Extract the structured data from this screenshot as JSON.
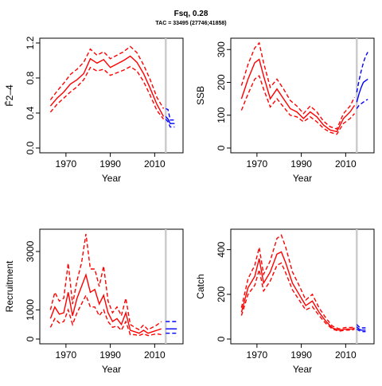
{
  "title": "Fsq, 0.28",
  "subtitle": "TAC = 33495 (27746;41858)",
  "colors": {
    "history": "#ff0000",
    "projection": "#0000ff",
    "marker": "#cccccc"
  },
  "chart_data": [
    {
      "id": "f",
      "type": "line",
      "ylabel": "F̄2–4",
      "xlabel": "Year",
      "xlim": [
        1960,
        2021
      ],
      "ylim": [
        0,
        1.2
      ],
      "xticks": [
        1970,
        1990,
        2010
      ],
      "yticks": [
        0.0,
        0.4,
        0.8,
        1.2
      ],
      "ytick_labels": [
        "0.0",
        "0.4",
        "0.8",
        "1.2"
      ],
      "marker_year": 2015,
      "history": {
        "x": [
          1963,
          1966,
          1969,
          1972,
          1975,
          1978,
          1981,
          1984,
          1987,
          1990,
          1993,
          1996,
          1999,
          2002,
          2005,
          2008,
          2011,
          2014
        ],
        "median": [
          0.48,
          0.57,
          0.64,
          0.73,
          0.78,
          0.85,
          1.02,
          0.97,
          1.01,
          0.92,
          0.96,
          1.0,
          1.05,
          0.98,
          0.85,
          0.68,
          0.5,
          0.36
        ],
        "lower": [
          0.41,
          0.5,
          0.57,
          0.64,
          0.7,
          0.78,
          0.92,
          0.88,
          0.9,
          0.83,
          0.86,
          0.89,
          0.93,
          0.88,
          0.76,
          0.6,
          0.43,
          0.33
        ],
        "upper": [
          0.55,
          0.65,
          0.74,
          0.84,
          0.9,
          0.98,
          1.13,
          1.06,
          1.1,
          1.02,
          1.06,
          1.1,
          1.16,
          1.09,
          0.95,
          0.78,
          0.58,
          0.45
        ]
      },
      "projection": {
        "x": [
          2015,
          2016,
          2017,
          2018,
          2019
        ],
        "median": [
          0.36,
          0.33,
          0.28,
          0.28,
          0.28
        ],
        "lower": [
          0.33,
          0.3,
          0.24,
          0.24,
          0.24
        ],
        "upper": [
          0.45,
          0.44,
          0.32,
          0.32,
          0.32
        ]
      }
    },
    {
      "id": "ssb",
      "type": "line",
      "ylabel": "SSB",
      "xlabel": "Year",
      "xlim": [
        1960,
        2021
      ],
      "ylim": [
        0,
        320
      ],
      "xticks": [
        1970,
        1990,
        2010
      ],
      "yticks": [
        0,
        100,
        200,
        300
      ],
      "ytick_labels": [
        "0",
        "100",
        "200",
        "300"
      ],
      "marker_year": 2015,
      "history": {
        "x": [
          1963,
          1966,
          1969,
          1971,
          1973,
          1976,
          1979,
          1982,
          1985,
          1988,
          1991,
          1994,
          1997,
          2000,
          2003,
          2006,
          2009,
          2012,
          2014
        ],
        "median": [
          150,
          210,
          260,
          270,
          220,
          150,
          180,
          150,
          120,
          110,
          90,
          110,
          95,
          70,
          55,
          50,
          90,
          110,
          130
        ],
        "lower": [
          115,
          165,
          210,
          220,
          180,
          125,
          150,
          125,
          100,
          95,
          80,
          95,
          80,
          60,
          48,
          42,
          75,
          90,
          105
        ],
        "upper": [
          190,
          255,
          305,
          320,
          260,
          185,
          210,
          180,
          145,
          128,
          105,
          128,
          110,
          82,
          65,
          58,
          105,
          128,
          155
        ]
      },
      "projection": {
        "x": [
          2015,
          2016,
          2017,
          2018,
          2019,
          2020
        ],
        "median": [
          140,
          165,
          185,
          200,
          205,
          210
        ],
        "lower": [
          120,
          130,
          135,
          140,
          145,
          148
        ],
        "upper": [
          170,
          205,
          235,
          260,
          280,
          292
        ]
      }
    },
    {
      "id": "recruitment",
      "type": "line",
      "ylabel": "Recruitment",
      "xlabel": "Year",
      "xlim": [
        1960,
        2021
      ],
      "ylim": [
        0,
        3600
      ],
      "xticks": [
        1970,
        1990,
        2010
      ],
      "yticks": [
        0,
        1000,
        3000
      ],
      "ytick_labels": [
        "0",
        "1000",
        "3000"
      ],
      "marker_year": 2015,
      "history": {
        "x": [
          1963,
          1965,
          1967,
          1969,
          1971,
          1973,
          1975,
          1977,
          1979,
          1981,
          1983,
          1985,
          1987,
          1989,
          1991,
          1993,
          1995,
          1997,
          1999,
          2001,
          2003,
          2005,
          2007,
          2009,
          2011,
          2013
        ],
        "median": [
          700,
          1100,
          850,
          900,
          1600,
          800,
          1400,
          1800,
          2200,
          1600,
          1700,
          1200,
          1500,
          900,
          600,
          700,
          500,
          900,
          300,
          250,
          200,
          300,
          200,
          250,
          300,
          350
        ],
        "lower": [
          400,
          700,
          550,
          600,
          1000,
          500,
          900,
          1200,
          1500,
          1100,
          1100,
          800,
          1000,
          600,
          400,
          450,
          300,
          600,
          150,
          150,
          120,
          180,
          120,
          150,
          180,
          150
        ],
        "upper": [
          1000,
          1600,
          1300,
          1400,
          2600,
          1200,
          2000,
          2600,
          3600,
          2400,
          2400,
          1800,
          2500,
          1300,
          900,
          1100,
          800,
          1400,
          500,
          400,
          320,
          480,
          320,
          400,
          480,
          600
        ]
      },
      "projection": {
        "x": [
          2015,
          2016,
          2017,
          2018,
          2019,
          2020
        ],
        "median": [
          350,
          350,
          350,
          350,
          350,
          350
        ],
        "lower": [
          200,
          200,
          200,
          200,
          200,
          200
        ],
        "upper": [
          600,
          600,
          600,
          600,
          600,
          600
        ]
      }
    },
    {
      "id": "catch",
      "type": "line",
      "ylabel": "Catch",
      "xlabel": "Year",
      "xlim": [
        1960,
        2021
      ],
      "ylim": [
        0,
        470
      ],
      "xticks": [
        1970,
        1990,
        2010
      ],
      "yticks": [
        0,
        200,
        400
      ],
      "ytick_labels": [
        "0",
        "200",
        "400"
      ],
      "marker_year": 2015,
      "history": {
        "x": [
          1963,
          1966,
          1969,
          1971,
          1973,
          1976,
          1979,
          1981,
          1983,
          1986,
          1989,
          1992,
          1995,
          1998,
          2001,
          2004,
          2007,
          2010,
          2013,
          2014
        ],
        "median": [
          120,
          230,
          280,
          360,
          250,
          300,
          380,
          390,
          340,
          250,
          200,
          150,
          170,
          120,
          80,
          50,
          40,
          45,
          45,
          50
        ],
        "lower": [
          105,
          200,
          240,
          310,
          215,
          260,
          330,
          340,
          295,
          220,
          175,
          130,
          145,
          105,
          70,
          45,
          35,
          40,
          40,
          45
        ],
        "upper": [
          140,
          270,
          330,
          410,
          290,
          350,
          450,
          465,
          410,
          300,
          240,
          175,
          200,
          140,
          95,
          58,
          46,
          52,
          52,
          58
        ]
      },
      "projection": {
        "x": [
          2015,
          2016,
          2017,
          2018,
          2019
        ],
        "median": [
          55,
          45,
          40,
          40,
          40
        ],
        "lower": [
          45,
          38,
          33,
          33,
          33
        ],
        "upper": [
          65,
          55,
          50,
          50,
          50
        ]
      }
    }
  ]
}
